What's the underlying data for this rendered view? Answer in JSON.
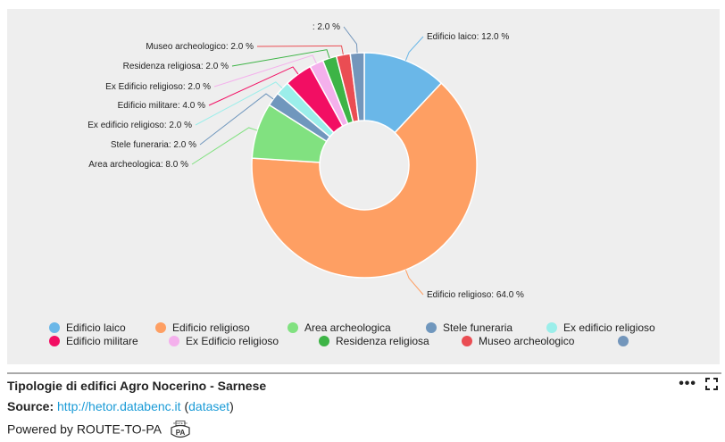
{
  "chart_data": {
    "type": "pie",
    "title": "Tipologie di edifici Agro Nocerino - Sarnese",
    "slices": [
      {
        "label": "Edificio laico",
        "value": 12.0,
        "color": "#6ab7e8"
      },
      {
        "label": "Edificio religioso",
        "value": 64.0,
        "color": "#fe9f63"
      },
      {
        "label": "Area archeologica",
        "value": 8.0,
        "color": "#81e180"
      },
      {
        "label": "Stele funeraria",
        "value": 2.0,
        "color": "#7097bd"
      },
      {
        "label": "Ex edificio religioso",
        "value": 2.0,
        "color": "#9beeea"
      },
      {
        "label": "Edificio militare",
        "value": 4.0,
        "color": "#f20e63"
      },
      {
        "label": "Ex Edificio religioso",
        "value": 2.0,
        "color": "#f4b0ec"
      },
      {
        "label": "Residenza religiosa",
        "value": 2.0,
        "color": "#3db446"
      },
      {
        "label": "Museo archeologico",
        "value": 2.0,
        "color": "#ea4d53"
      },
      {
        "label": "",
        "value": 2.0,
        "color": "#7396bb"
      }
    ],
    "legend_placement": "bottom",
    "value_suffix": " %"
  },
  "caption": {
    "title": "Tipologie di edifici Agro Nocerino - Sarnese",
    "source_label": "Source:",
    "source_url": "http://hetor.databenc.it",
    "dataset_link": "dataset",
    "powered_by": "Powered by ROUTE-TO-PA",
    "logo_top": "ROUTE TO",
    "logo_main": "PA"
  },
  "tools": {
    "more_glyph": "•••"
  }
}
